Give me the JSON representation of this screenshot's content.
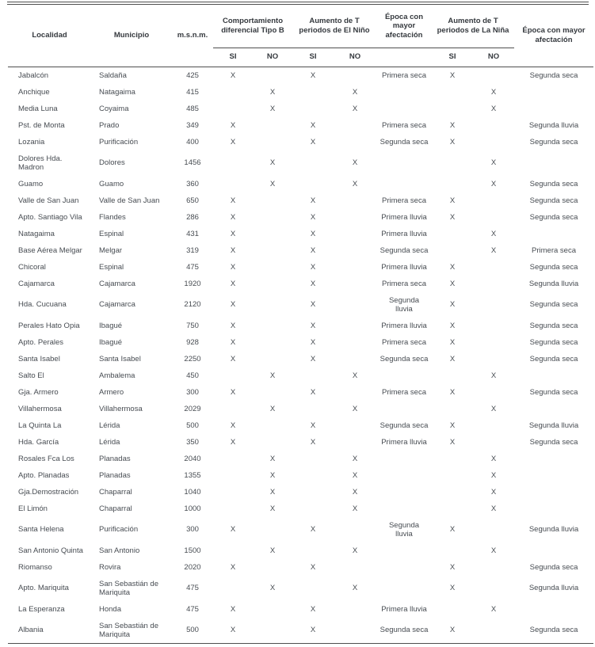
{
  "colors": {
    "text": "#474c52",
    "header_text": "#35393e",
    "rule": "#4f4f4f"
  },
  "table": {
    "headers": {
      "localidad": "Localidad",
      "municipio": "Municipio",
      "msnm": "m.s.n.m.",
      "comportamiento": "Comportamiento diferencial Tipo B",
      "aumento_nino": "Aumento de T periodos de El Niño",
      "epoca_nino": "Época con mayor afectación",
      "aumento_nina": "Aumento de T periodos de La Niña",
      "epoca_nina": "Época con mayor afectación",
      "si": "SI",
      "no": "NO"
    },
    "columns": [
      "localidad",
      "municipio",
      "msnm",
      "comp_si",
      "comp_no",
      "nino_si",
      "nino_no",
      "epoca_nino",
      "nina_si",
      "nina_no",
      "epoca_nina"
    ],
    "rows": [
      [
        "Jabalcón",
        "Saldaña",
        "425",
        "X",
        "",
        "X",
        "",
        "Primera seca",
        "X",
        "",
        "Segunda seca"
      ],
      [
        "Anchique",
        "Natagaima",
        "415",
        "",
        "X",
        "",
        "X",
        "",
        "",
        "X",
        ""
      ],
      [
        "Media Luna",
        "Coyaima",
        "485",
        "",
        "X",
        "",
        "X",
        "",
        "",
        "X",
        ""
      ],
      [
        "Pst. de Monta",
        "Prado",
        "349",
        "X",
        "",
        "X",
        "",
        "Primera seca",
        "X",
        "",
        "Segunda lluvia"
      ],
      [
        "Lozania",
        "Purificación",
        "400",
        "X",
        "",
        "X",
        "",
        "Segunda seca",
        "X",
        "",
        "Segunda seca"
      ],
      [
        "Dolores Hda. Madron",
        "Dolores",
        "1456",
        "",
        "X",
        "",
        "X",
        "",
        "",
        "X",
        ""
      ],
      [
        "Guamo",
        "Guamo",
        "360",
        "",
        "X",
        "",
        "X",
        "",
        "",
        "X",
        "Segunda seca"
      ],
      [
        "Valle de San Juan",
        "Valle de San Juan",
        "650",
        "X",
        "",
        "X",
        "",
        "Primera seca",
        "X",
        "",
        "Segunda seca"
      ],
      [
        "Apto. Santiago Vila",
        "Flandes",
        "286",
        "X",
        "",
        "X",
        "",
        "Primera lluvia",
        "X",
        "",
        "Segunda seca"
      ],
      [
        "Natagaima",
        "Espinal",
        "431",
        "X",
        "",
        "X",
        "",
        "Primera lluvia",
        "",
        "X",
        ""
      ],
      [
        "Base Aérea Melgar",
        "Melgar",
        "319",
        "X",
        "",
        "X",
        "",
        "Segunda seca",
        "",
        "X",
        "Primera seca"
      ],
      [
        "Chicoral",
        "Espinal",
        "475",
        "X",
        "",
        "X",
        "",
        "Primera lluvia",
        "X",
        "",
        "Segunda seca"
      ],
      [
        "Cajamarca",
        "Cajamarca",
        "1920",
        "X",
        "",
        "X",
        "",
        "Primera seca",
        "X",
        "",
        "Segunda lluvia"
      ],
      [
        "Hda. Cucuana",
        "Cajamarca",
        "2120",
        "X",
        "",
        "X",
        "",
        "Segunda\nlluvia",
        "X",
        "",
        "Segunda seca"
      ],
      [
        "Perales Hato Opia",
        "Ibagué",
        "750",
        "X",
        "",
        "X",
        "",
        "Primera lluvia",
        "X",
        "",
        "Segunda seca"
      ],
      [
        "Apto. Perales",
        "Ibagué",
        "928",
        "X",
        "",
        "X",
        "",
        "Primera seca",
        "X",
        "",
        "Segunda seca"
      ],
      [
        "Santa Isabel",
        "Santa Isabel",
        "2250",
        "X",
        "",
        "X",
        "",
        "Segunda seca",
        "X",
        "",
        "Segunda seca"
      ],
      [
        "Salto El",
        "Ambalema",
        "450",
        "",
        "X",
        "",
        "X",
        "",
        "",
        "X",
        ""
      ],
      [
        "Gja. Armero",
        "Armero",
        "300",
        "X",
        "",
        "X",
        "",
        "Primera seca",
        "X",
        "",
        "Segunda seca"
      ],
      [
        "Villahermosa",
        "Villahermosa",
        "2029",
        "",
        "X",
        "",
        "X",
        "",
        "",
        "X",
        ""
      ],
      [
        "La Quinta La",
        "Lérida",
        "500",
        "X",
        "",
        "X",
        "",
        "Segunda seca",
        "X",
        "",
        "Segunda lluvia"
      ],
      [
        "Hda. García",
        "Lérida",
        "350",
        "X",
        "",
        "X",
        "",
        "Primera lluvia",
        "X",
        "",
        "Segunda seca"
      ],
      [
        "Rosales Fca Los",
        "Planadas",
        "2040",
        "",
        "X",
        "",
        "X",
        "",
        "",
        "X",
        ""
      ],
      [
        "Apto. Planadas",
        "Planadas",
        "1355",
        "",
        "X",
        "",
        "X",
        "",
        "",
        "X",
        ""
      ],
      [
        "Gja.Demostración",
        "Chaparral",
        "1040",
        "",
        "X",
        "",
        "X",
        "",
        "",
        "X",
        ""
      ],
      [
        "El Limón",
        "Chaparral",
        "1000",
        "",
        "X",
        "",
        "X",
        "",
        "",
        "X",
        ""
      ],
      [
        "Santa Helena",
        "Purificación",
        "300",
        "X",
        "",
        "X",
        "",
        "Segunda\nlluvia",
        "X",
        "",
        "Segunda lluvia"
      ],
      [
        "San Antonio Quinta",
        "San Antonio",
        "1500",
        "",
        "X",
        "",
        "X",
        "",
        "",
        "X",
        ""
      ],
      [
        "Riomanso",
        "Rovira",
        "2020",
        "X",
        "",
        "X",
        "",
        "",
        "X",
        "",
        "Segunda seca"
      ],
      [
        "Apto. Mariquita",
        "San Sebastián de\nMariquita",
        "475",
        "",
        "X",
        "",
        "X",
        "",
        "X",
        "",
        "Segunda lluvia"
      ],
      [
        "La Esperanza",
        "Honda",
        "475",
        "X",
        "",
        "X",
        "",
        "Primera lluvia",
        "",
        "X",
        ""
      ],
      [
        "Albania",
        "San Sebastián de\nMariquita",
        "500",
        "X",
        "",
        "X",
        "",
        "Segunda seca",
        "X",
        "",
        "Segunda seca"
      ]
    ]
  }
}
